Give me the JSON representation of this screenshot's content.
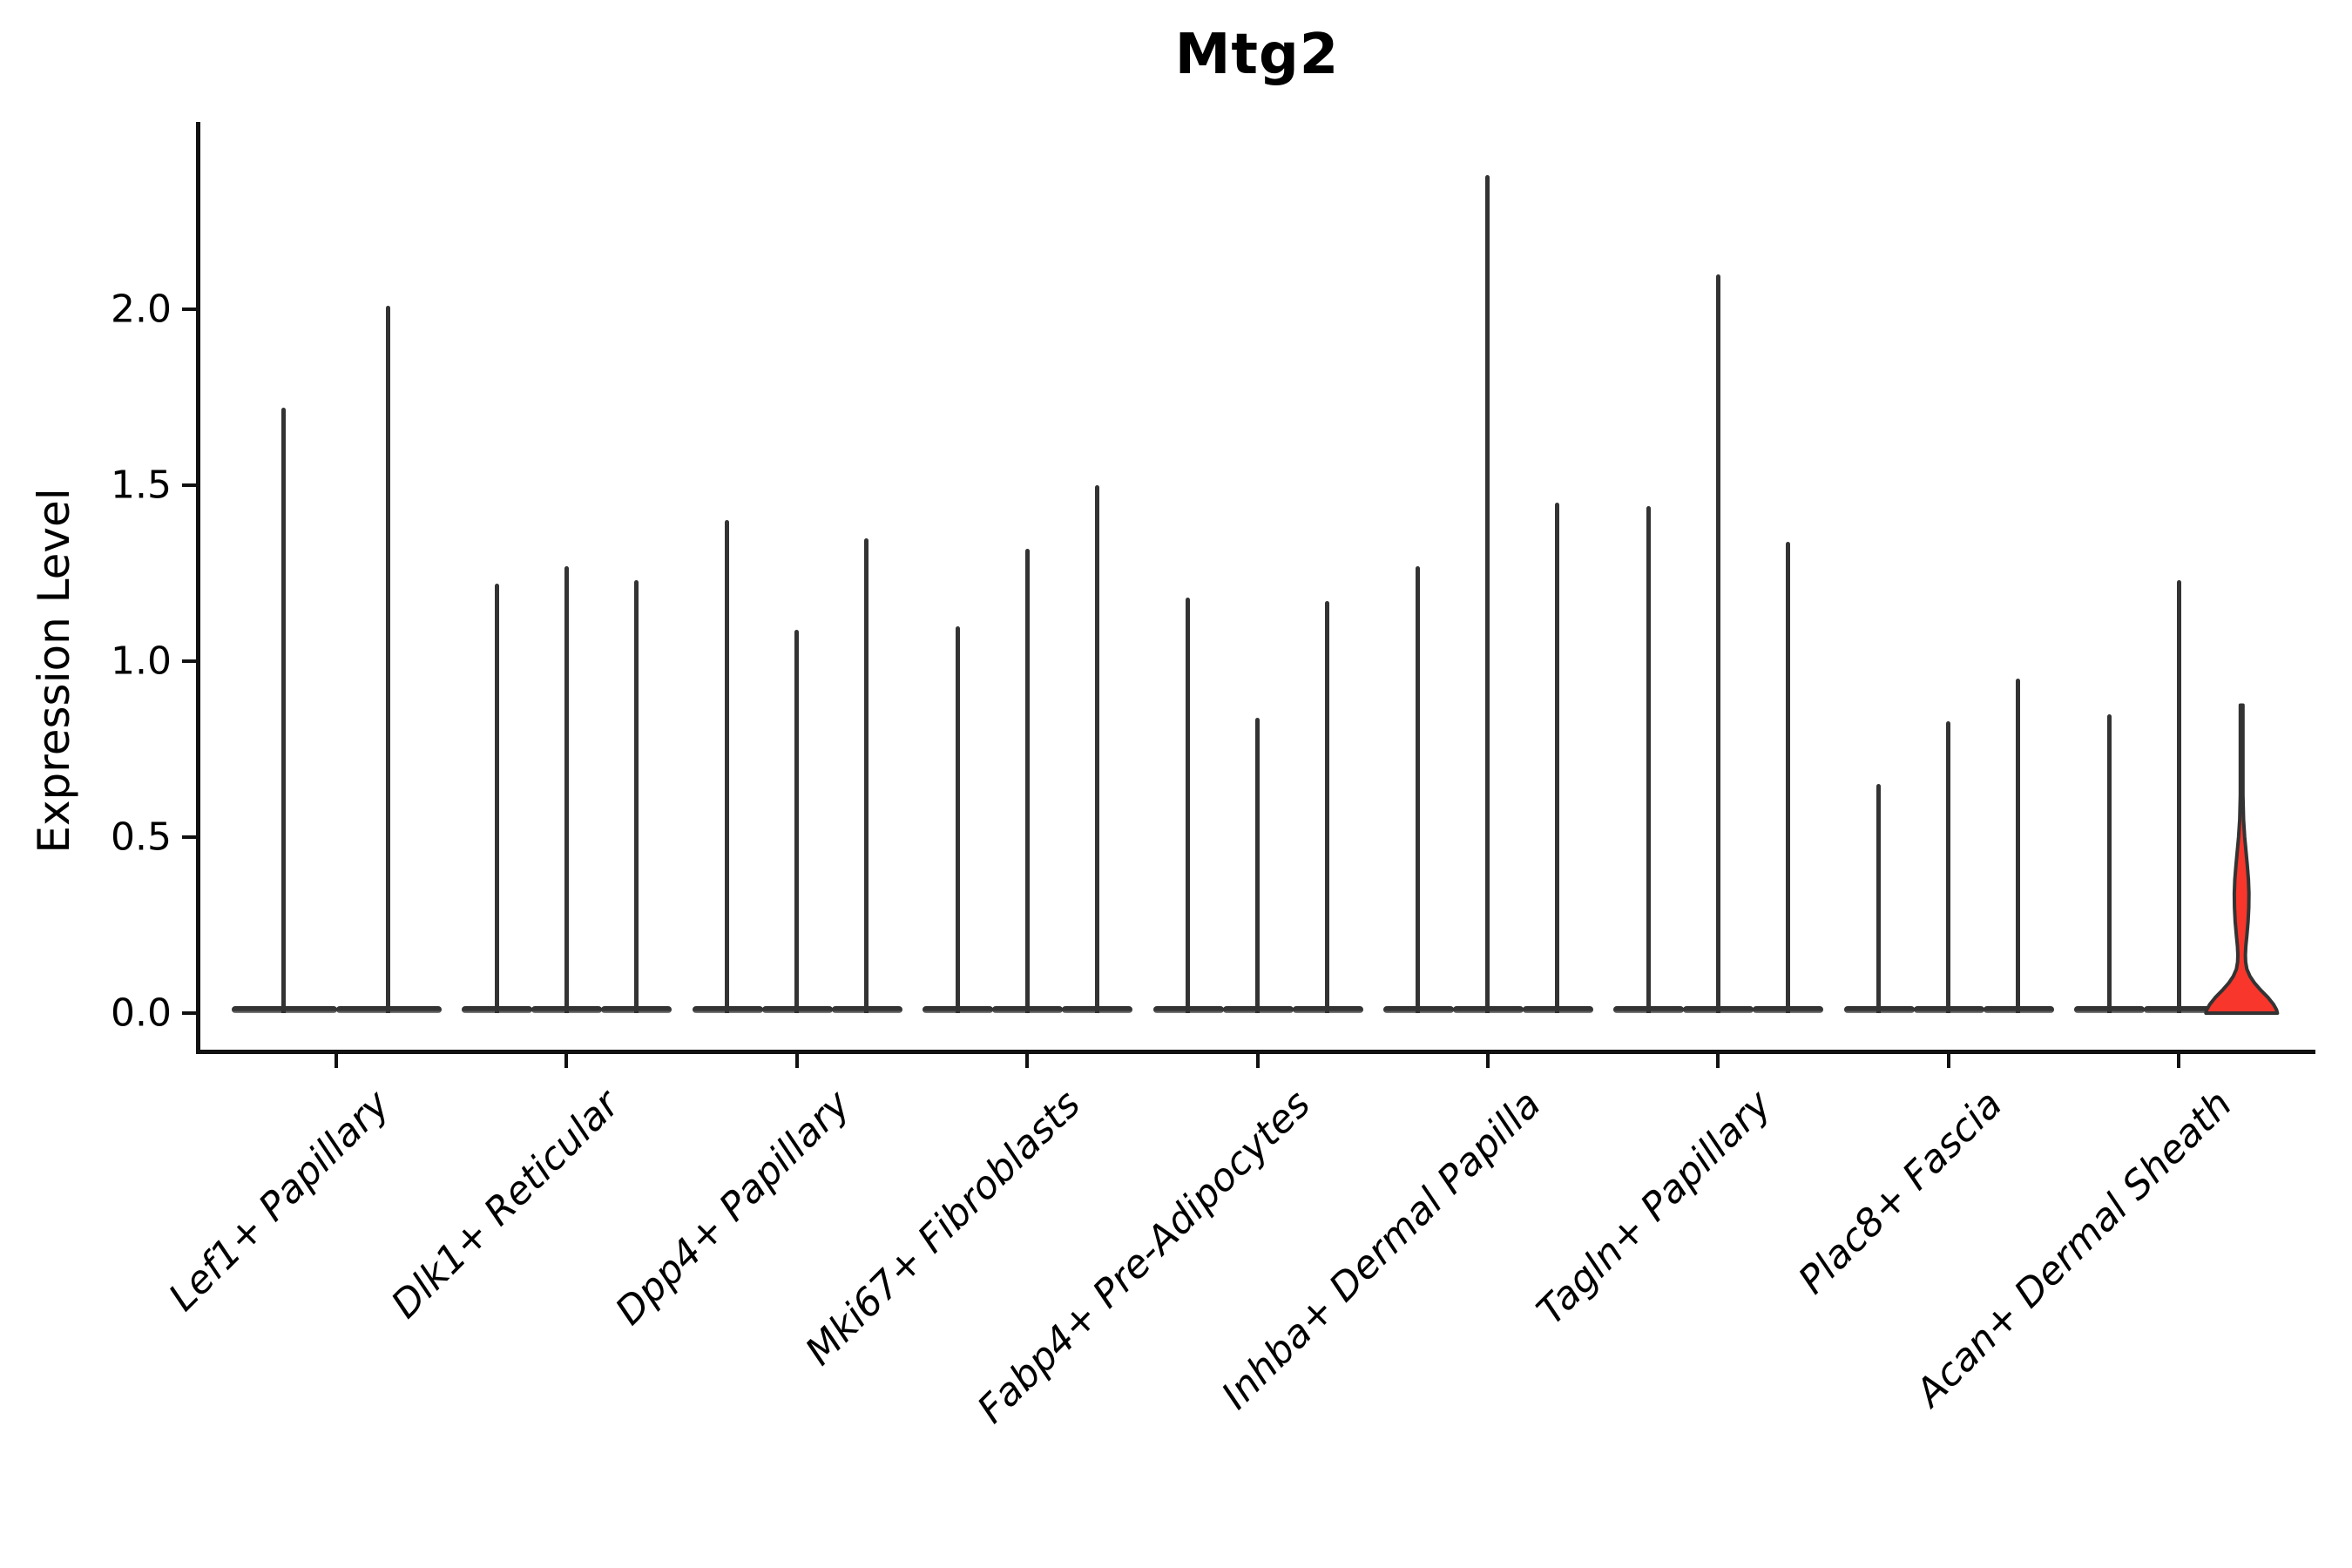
{
  "figure": {
    "title": "Mtg2",
    "ylabel": "Expression Level"
  },
  "chart_data": {
    "type": "violin",
    "title": "Mtg2",
    "xlabel": "",
    "ylabel": "Expression Level",
    "ylim": [
      -0.11,
      2.53
    ],
    "grid": false,
    "legend": false,
    "yticks": [
      {
        "value": 0.0,
        "label": "0.0"
      },
      {
        "value": 0.5,
        "label": "0.5"
      },
      {
        "value": 1.0,
        "label": "1.0"
      },
      {
        "value": 1.5,
        "label": "1.5"
      },
      {
        "value": 2.0,
        "label": "2.0"
      }
    ],
    "categories": [
      "Lef1+ Papillary",
      "Dlk1+ Reticular",
      "Dpp4+ Papillary",
      "Mki67+ Fibroblasts",
      "Fabp4+ Pre-Adipocytes",
      "Inhba+ Dermal Papilla",
      "Tagln+ Papillary",
      "Plac8+ Fascia",
      "Acan+ Dermal Sheath"
    ],
    "groups": [
      {
        "category": "Lef1+ Papillary",
        "violins": [
          {
            "max": 1.72
          },
          {
            "max": 2.01
          }
        ]
      },
      {
        "category": "Dlk1+ Reticular",
        "violins": [
          {
            "max": 1.22
          },
          {
            "max": 1.27
          },
          {
            "max": 1.23
          }
        ]
      },
      {
        "category": "Dpp4+ Papillary",
        "violins": [
          {
            "max": 1.4
          },
          {
            "max": 1.09
          },
          {
            "max": 1.35
          }
        ]
      },
      {
        "category": "Mki67+ Fibroblasts",
        "violins": [
          {
            "max": 1.1
          },
          {
            "max": 1.32
          },
          {
            "max": 1.5
          }
        ]
      },
      {
        "category": "Fabp4+ Pre-Adipocytes",
        "violins": [
          {
            "max": 1.18
          },
          {
            "max": 0.84
          },
          {
            "max": 1.17
          }
        ]
      },
      {
        "category": "Inhba+ Dermal Papilla",
        "violins": [
          {
            "max": 1.27
          },
          {
            "max": 2.38
          },
          {
            "max": 1.45
          }
        ]
      },
      {
        "category": "Tagln+ Papillary",
        "violins": [
          {
            "max": 1.44
          },
          {
            "max": 2.1
          },
          {
            "max": 1.34
          }
        ]
      },
      {
        "category": "Plac8+ Fascia",
        "violins": [
          {
            "max": 0.65
          },
          {
            "max": 0.83
          },
          {
            "max": 0.95
          }
        ]
      },
      {
        "category": "Acan+ Dermal Sheath",
        "violins": [
          {
            "max": 0.85
          },
          {
            "max": 1.23
          },
          {
            "max": 0.87,
            "highlight": true,
            "body_visible_below": 0.55,
            "profile": [
              [
                0.875,
                1.5
              ],
              [
                0.62,
                1.5
              ],
              [
                0.55,
                2.2
              ],
              [
                0.5,
                3.5
              ],
              [
                0.46,
                5.0
              ],
              [
                0.42,
                6.5
              ],
              [
                0.38,
                7.8
              ],
              [
                0.34,
                8.4
              ],
              [
                0.3,
                8.2
              ],
              [
                0.26,
                7.4
              ],
              [
                0.22,
                6.0
              ],
              [
                0.19,
                4.8
              ],
              [
                0.165,
                4.3
              ],
              [
                0.145,
                4.6
              ],
              [
                0.125,
                6.0
              ],
              [
                0.105,
                9.5
              ],
              [
                0.085,
                15.0
              ],
              [
                0.065,
                22.0
              ],
              [
                0.045,
                30.0
              ],
              [
                0.025,
                36.5
              ],
              [
                0.01,
                40.0
              ],
              [
                0.0,
                41.0
              ]
            ]
          }
        ]
      }
    ],
    "colors": {
      "violin_line": "#333333",
      "violin_base_fill": "#353535",
      "highlight_fill": "#f8362b",
      "highlight_outline": "#333333",
      "axis": "#111111",
      "text": "#000000"
    }
  }
}
